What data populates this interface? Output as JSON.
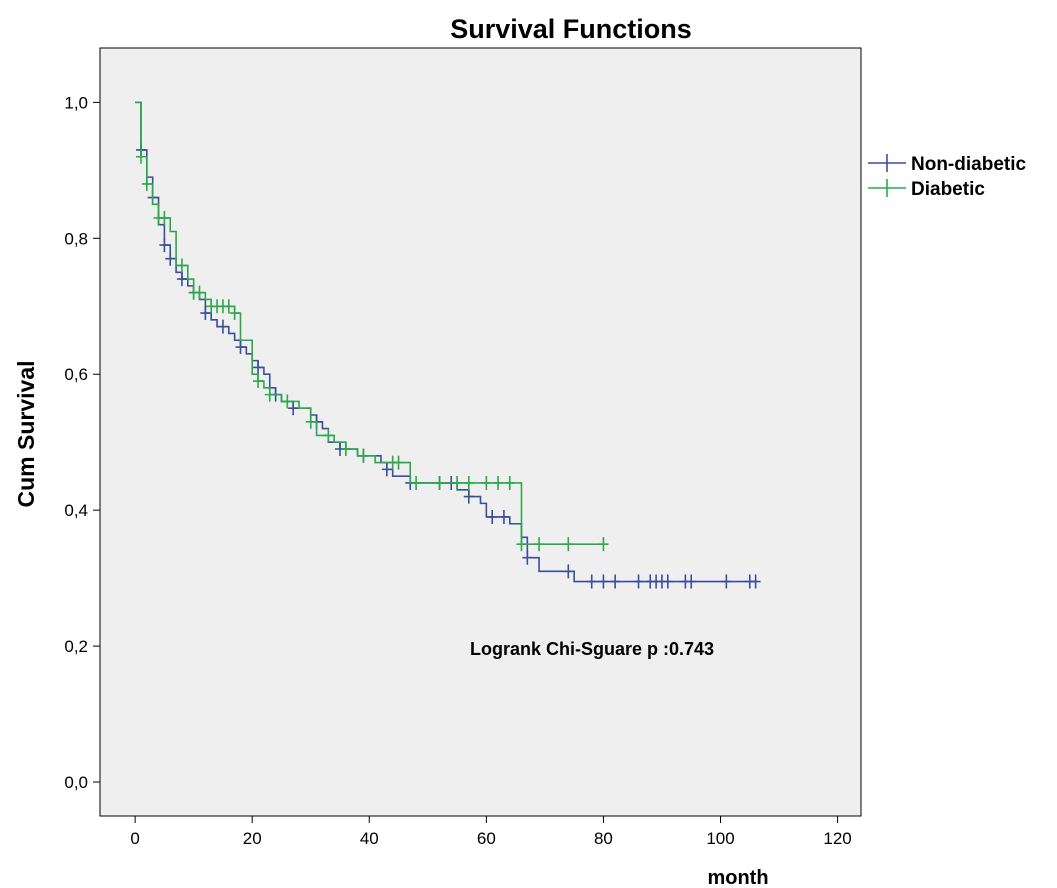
{
  "chart_data": {
    "type": "line",
    "title": "Survival Functions",
    "xlabel": "month",
    "ylabel": "Cum Survival",
    "xlim": [
      -6,
      124
    ],
    "ylim": [
      -0.05,
      1.08
    ],
    "x_ticks": [
      0,
      20,
      40,
      60,
      80,
      100,
      120
    ],
    "x_tick_labels": [
      "0",
      "20",
      "40",
      "60",
      "80",
      "100",
      "120"
    ],
    "y_ticks": [
      0.0,
      0.2,
      0.4,
      0.6,
      0.8,
      1.0
    ],
    "y_tick_labels": [
      "0,0",
      "0,2",
      "0,4",
      "0,6",
      "0,8",
      "1,0"
    ],
    "grid": false,
    "legend_position": "right-outside-top",
    "annotation": "Logrank Chi-Sguare  p :0.743",
    "series": [
      {
        "name": "Non-diabetic",
        "color": "#3a4f9a",
        "steps": [
          [
            0,
            1.0
          ],
          [
            1,
            0.93
          ],
          [
            2,
            0.89
          ],
          [
            3,
            0.86
          ],
          [
            4,
            0.82
          ],
          [
            5,
            0.79
          ],
          [
            6,
            0.77
          ],
          [
            7,
            0.75
          ],
          [
            8,
            0.74
          ],
          [
            9,
            0.73
          ],
          [
            10,
            0.72
          ],
          [
            11,
            0.71
          ],
          [
            12,
            0.69
          ],
          [
            13,
            0.68
          ],
          [
            14,
            0.67
          ],
          [
            16,
            0.66
          ],
          [
            17,
            0.65
          ],
          [
            18,
            0.64
          ],
          [
            19,
            0.63
          ],
          [
            20,
            0.62
          ],
          [
            21,
            0.61
          ],
          [
            22,
            0.6
          ],
          [
            23,
            0.58
          ],
          [
            24,
            0.57
          ],
          [
            25,
            0.56
          ],
          [
            27,
            0.55
          ],
          [
            30,
            0.54
          ],
          [
            31,
            0.53
          ],
          [
            32,
            0.52
          ],
          [
            33,
            0.5
          ],
          [
            35,
            0.49
          ],
          [
            38,
            0.48
          ],
          [
            42,
            0.47
          ],
          [
            43,
            0.46
          ],
          [
            44,
            0.45
          ],
          [
            47,
            0.44
          ],
          [
            55,
            0.43
          ],
          [
            57,
            0.42
          ],
          [
            59,
            0.41
          ],
          [
            60,
            0.39
          ],
          [
            64,
            0.38
          ],
          [
            66,
            0.36
          ],
          [
            67,
            0.33
          ],
          [
            69,
            0.31
          ],
          [
            75,
            0.295
          ],
          [
            106,
            0.295
          ]
        ],
        "censored_x": [
          1,
          3,
          5,
          6,
          8,
          10,
          12,
          15,
          18,
          21,
          24,
          27,
          31,
          35,
          39,
          43,
          47,
          52,
          54,
          57,
          61,
          63,
          67,
          74,
          78,
          80,
          82,
          86,
          88,
          89,
          90,
          91,
          94,
          95,
          101,
          105,
          106
        ]
      },
      {
        "name": "Diabetic",
        "color": "#2aa84a",
        "steps": [
          [
            0,
            1.0
          ],
          [
            1,
            0.92
          ],
          [
            2,
            0.88
          ],
          [
            3,
            0.85
          ],
          [
            4,
            0.83
          ],
          [
            6,
            0.81
          ],
          [
            7,
            0.76
          ],
          [
            9,
            0.74
          ],
          [
            10,
            0.72
          ],
          [
            12,
            0.71
          ],
          [
            13,
            0.7
          ],
          [
            17,
            0.69
          ],
          [
            18,
            0.65
          ],
          [
            20,
            0.6
          ],
          [
            21,
            0.59
          ],
          [
            22,
            0.58
          ],
          [
            23,
            0.57
          ],
          [
            25,
            0.56
          ],
          [
            28,
            0.55
          ],
          [
            30,
            0.53
          ],
          [
            31,
            0.51
          ],
          [
            34,
            0.5
          ],
          [
            36,
            0.49
          ],
          [
            38,
            0.48
          ],
          [
            41,
            0.47
          ],
          [
            47,
            0.44
          ],
          [
            66,
            0.35
          ],
          [
            80,
            0.35
          ]
        ],
        "censored_x": [
          1,
          2,
          4,
          5,
          8,
          10,
          11,
          13,
          14,
          15,
          16,
          17,
          21,
          23,
          26,
          30,
          33,
          36,
          39,
          44,
          45,
          48,
          52,
          55,
          57,
          60,
          62,
          64,
          66,
          69,
          74,
          80
        ]
      }
    ]
  }
}
